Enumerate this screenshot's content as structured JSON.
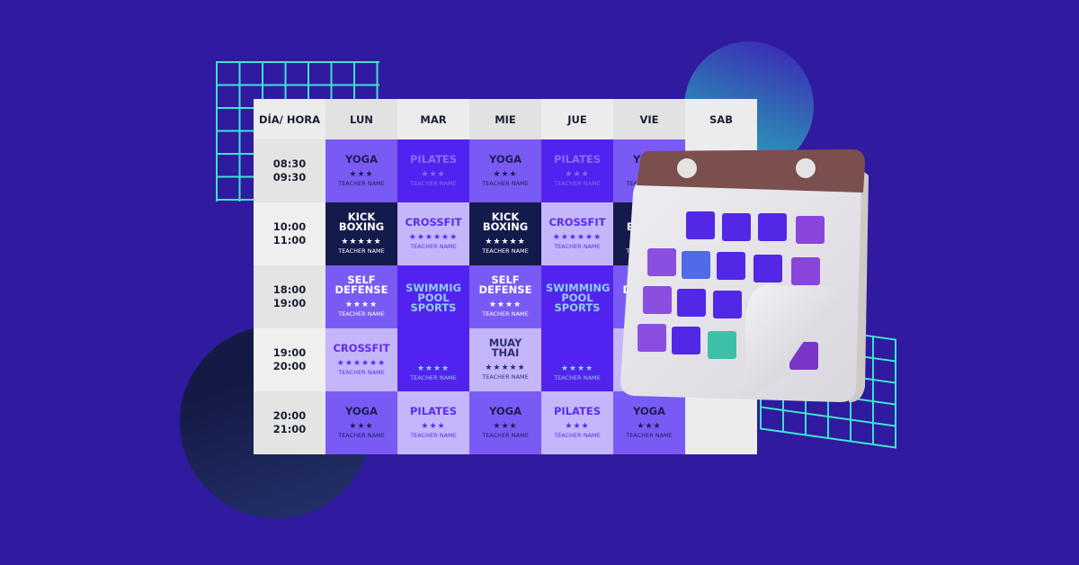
{
  "header": {
    "corner": "DÍA/ HORA",
    "days": [
      "LUN",
      "MAR",
      "MIE",
      "JUE",
      "VIE",
      "SAB"
    ]
  },
  "teacher_label": "TEACHER NAME",
  "rows": [
    {
      "time": [
        "08:30",
        "09:30"
      ],
      "cells": [
        {
          "day": "LUN",
          "title": "YOGA",
          "stars": 3,
          "variant": "mid"
        },
        {
          "day": "MAR",
          "title": "PILATES",
          "stars": 3,
          "variant": "vivid"
        },
        {
          "day": "MIE",
          "title": "YOGA",
          "stars": 3,
          "variant": "mid"
        },
        {
          "day": "JUE",
          "title": "PILATES",
          "stars": 3,
          "variant": "vivid"
        },
        {
          "day": "VIE",
          "title": "YOGA",
          "stars": 3,
          "variant": "mid"
        },
        {
          "day": "SAB",
          "variant": "empty"
        }
      ]
    },
    {
      "time": [
        "10:00",
        "11:00"
      ],
      "cells": [
        {
          "day": "LUN",
          "title": "KICK BOXING",
          "stars": 5,
          "variant": "navy"
        },
        {
          "day": "MAR",
          "title": "CROSSFIT",
          "stars": 6,
          "variant": "light"
        },
        {
          "day": "MIE",
          "title": "KICK BOXING",
          "stars": 5,
          "variant": "navy"
        },
        {
          "day": "JUE",
          "title": "CROSSFIT",
          "stars": 6,
          "variant": "light"
        },
        {
          "day": "VIE",
          "title": "KICK BOXING",
          "stars": 5,
          "variant": "navy"
        },
        {
          "day": "SAB",
          "variant": "empty"
        }
      ]
    },
    {
      "time": [
        "18:00",
        "19:00"
      ],
      "cells": [
        {
          "day": "LUN",
          "title": "SELF DEFENSE",
          "stars": 4,
          "variant": "mid-white"
        },
        {
          "day": "MAR",
          "title": "SWIMMIG POOL SPORTS",
          "stars": 4,
          "variant": "vivid-cyan",
          "rowspan": 2
        },
        {
          "day": "MIE",
          "title": "SELF DEFENSE",
          "stars": 4,
          "variant": "mid-white"
        },
        {
          "day": "JUE",
          "title": "SWIMMING POOL SPORTS",
          "stars": 4,
          "variant": "vivid-cyan",
          "rowspan": 2
        },
        {
          "day": "VIE",
          "title": "SELF DEFENSE",
          "stars": 4,
          "variant": "mid-white"
        },
        {
          "day": "SAB",
          "variant": "empty"
        }
      ]
    },
    {
      "time": [
        "19:00",
        "20:00"
      ],
      "cells": [
        {
          "day": "LUN",
          "title": "CROSSFIT",
          "stars": 6,
          "variant": "light"
        },
        {
          "day": "MIE",
          "title": "MUAY THAI",
          "stars": 5,
          "variant": "light-navy"
        },
        {
          "day": "VIE",
          "title": "",
          "stars": 0,
          "variant": "light"
        },
        {
          "day": "SAB",
          "variant": "empty"
        }
      ]
    },
    {
      "time": [
        "20:00",
        "21:00"
      ],
      "cells": [
        {
          "day": "LUN",
          "title": "YOGA",
          "stars": 3,
          "variant": "mid"
        },
        {
          "day": "MAR",
          "title": "PILATES",
          "stars": 3,
          "variant": "light"
        },
        {
          "day": "MIE",
          "title": "YOGA",
          "stars": 3,
          "variant": "mid"
        },
        {
          "day": "JUE",
          "title": "PILATES",
          "stars": 3,
          "variant": "light"
        },
        {
          "day": "VIE",
          "title": "YOGA",
          "stars": 3,
          "variant": "mid"
        },
        {
          "day": "SAB",
          "variant": "empty"
        }
      ]
    }
  ],
  "colors": {
    "background": "#2f1aa0",
    "grid_lines": "#3fe3cf",
    "calendar_band": "#7a4f4e",
    "calendar_page": "#e8e6ec"
  }
}
